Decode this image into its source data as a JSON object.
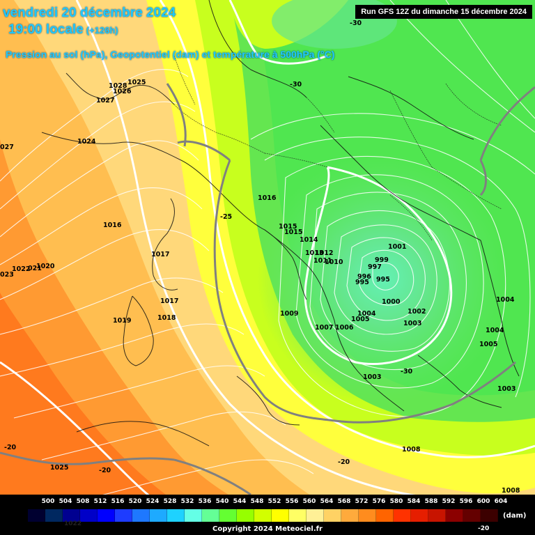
{
  "header": {
    "date_line": "vendredi 20 décembre 2024",
    "time_line": "19:00 locale",
    "offset": "(+126h)",
    "parameters": "Pression au sol (hPa), Geopotentiel (dam) et température à 500hPa (°C)",
    "run_info": "Run GFS 12Z du dimanche 15 décembre 2024"
  },
  "legend": {
    "unit": "(dam)",
    "copyright": "Copyright 2024 Meteociel.fr",
    "bottom_left_label": "1022",
    "bottom_right_label": "-20",
    "levels": [
      "500",
      "504",
      "508",
      "512",
      "516",
      "520",
      "524",
      "528",
      "532",
      "536",
      "540",
      "544",
      "548",
      "552",
      "556",
      "560",
      "564",
      "568",
      "572",
      "576",
      "580",
      "584",
      "588",
      "592",
      "596",
      "600",
      "604"
    ],
    "colors": [
      "#000030",
      "#002860",
      "#000090",
      "#0000c8",
      "#0000ff",
      "#1e3cff",
      "#1e78ff",
      "#1eaaff",
      "#1ed2ff",
      "#64ffe6",
      "#64ff96",
      "#64ff32",
      "#96ff00",
      "#d2ff00",
      "#ffff00",
      "#ffff64",
      "#fff096",
      "#ffd264",
      "#ffaa3c",
      "#ff8c1e",
      "#ff6400",
      "#ff3200",
      "#e61e00",
      "#c81400",
      "#8c0000",
      "#640000",
      "#3c0000",
      "#000000"
    ]
  },
  "pressure_labels": [
    {
      "text": "1028"
    },
    {
      "text": "1026"
    },
    {
      "text": "1025"
    },
    {
      "text": "1027"
    },
    {
      "text": "1024"
    },
    {
      "text": "027"
    },
    {
      "text": "1016"
    },
    {
      "text": "1017"
    },
    {
      "text": "1020"
    },
    {
      "text": "1022"
    },
    {
      "text": "021"
    },
    {
      "text": "023"
    },
    {
      "text": "1017"
    },
    {
      "text": "1019"
    },
    {
      "text": "1018"
    },
    {
      "text": "1016"
    },
    {
      "text": "1015"
    },
    {
      "text": "1015"
    },
    {
      "text": "1014"
    },
    {
      "text": "1013"
    },
    {
      "text": "1012"
    },
    {
      "text": "1011"
    },
    {
      "text": "1010"
    },
    {
      "text": "1001"
    },
    {
      "text": "999"
    },
    {
      "text": "997"
    },
    {
      "text": "996"
    },
    {
      "text": "995"
    },
    {
      "text": "995"
    },
    {
      "text": "1000"
    },
    {
      "text": "1002"
    },
    {
      "text": "1004"
    },
    {
      "text": "1005"
    },
    {
      "text": "1003"
    },
    {
      "text": "1009"
    },
    {
      "text": "1007"
    },
    {
      "text": "1006"
    },
    {
      "text": "1003"
    },
    {
      "text": "1004"
    },
    {
      "text": "1004"
    },
    {
      "text": "1005"
    },
    {
      "text": "1003"
    },
    {
      "text": "1008"
    },
    {
      "text": "1025"
    },
    {
      "text": "1008"
    }
  ],
  "temperature_labels": [
    {
      "text": "-30"
    },
    {
      "text": "-30"
    },
    {
      "text": "-25"
    },
    {
      "text": "-30"
    },
    {
      "text": "-20"
    },
    {
      "text": "-20"
    },
    {
      "text": "-20"
    }
  ]
}
